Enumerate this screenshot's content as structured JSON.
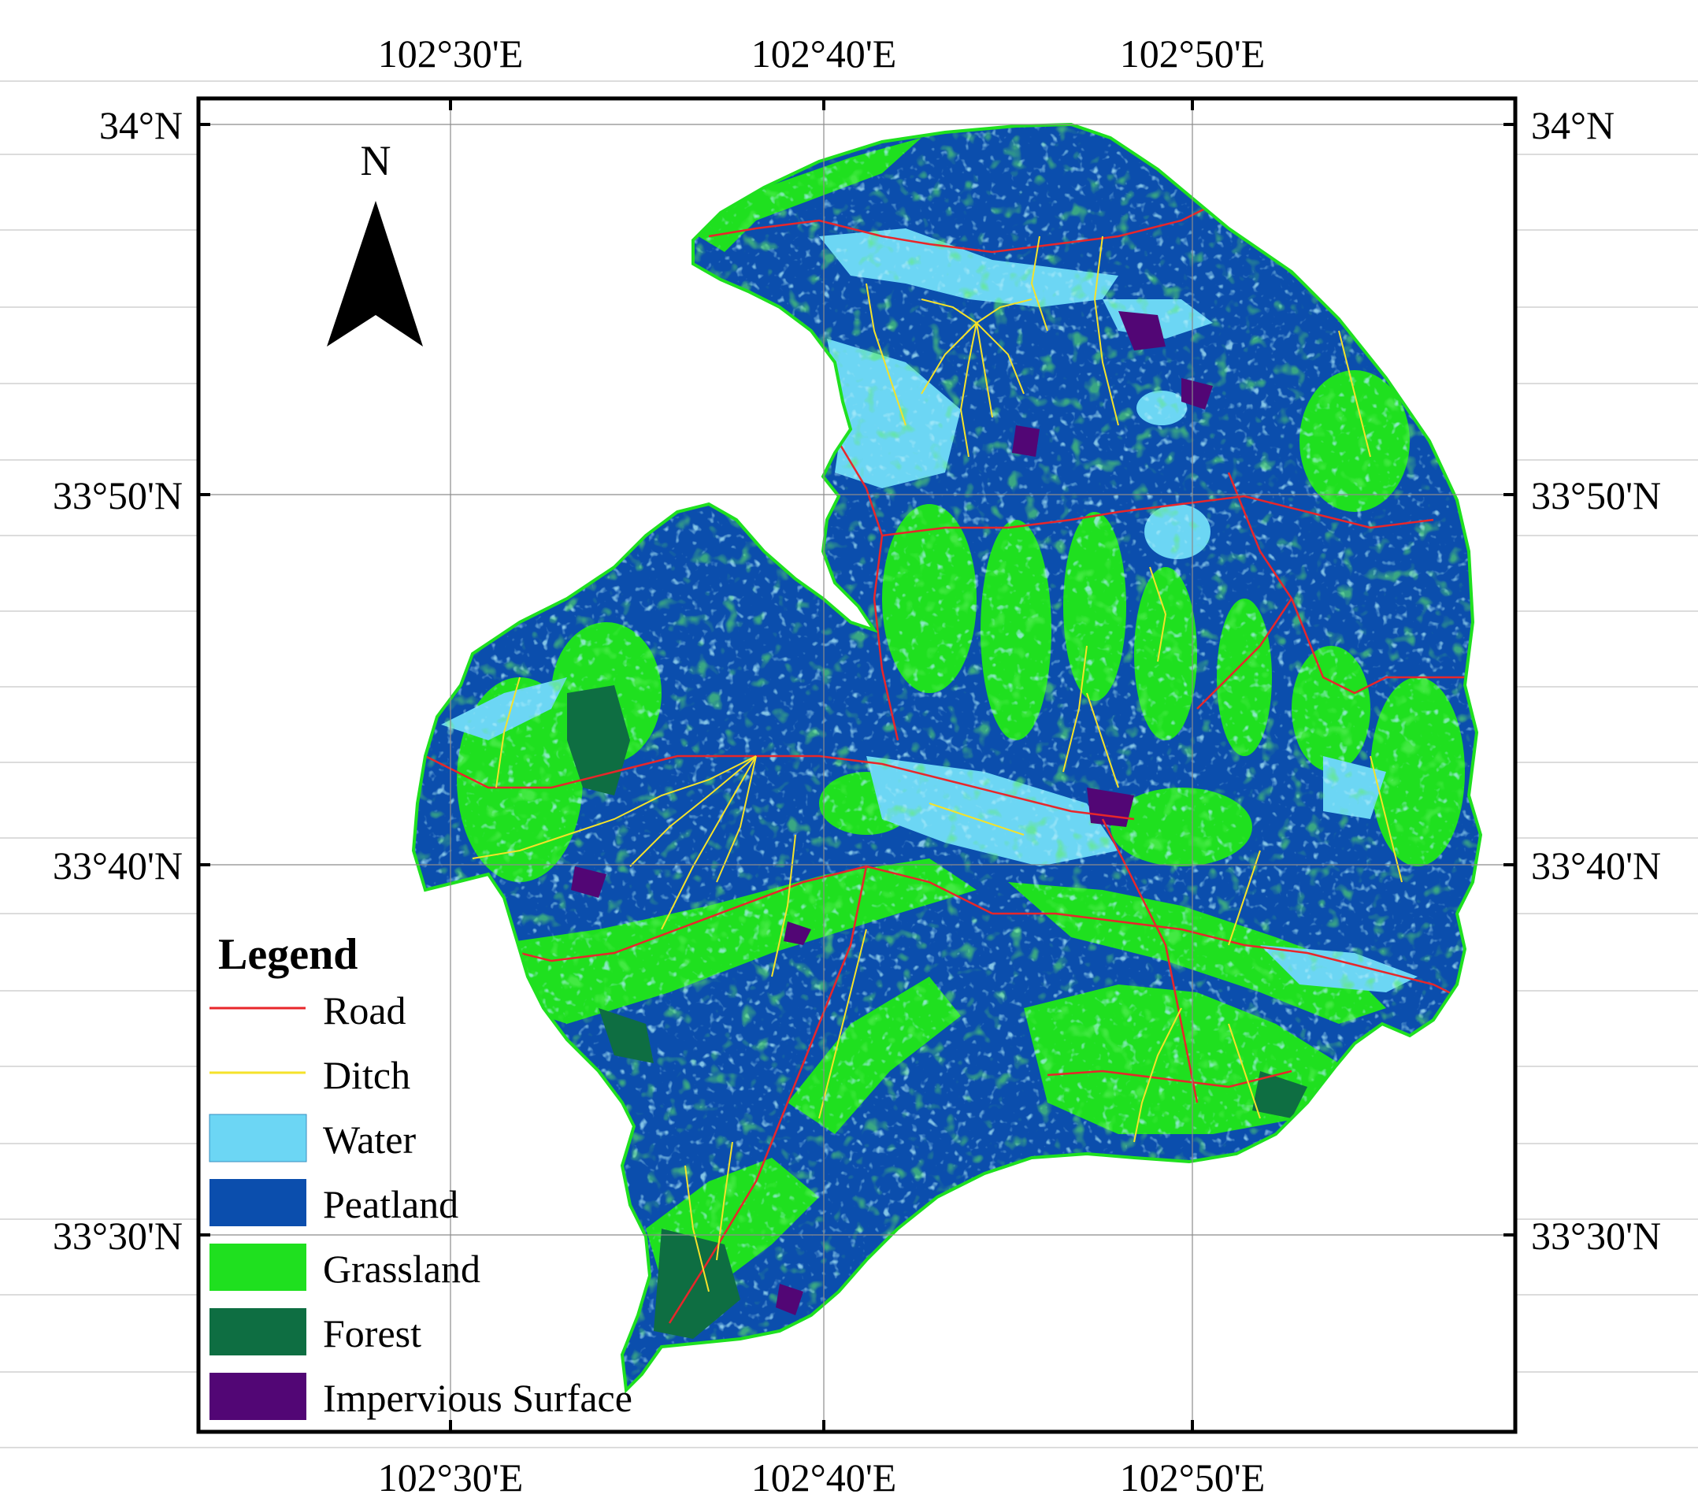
{
  "map": {
    "north_arrow_label": "N",
    "top_axis": [
      "102°30'E",
      "102°40'E",
      "102°50'E"
    ],
    "bottom_axis": [
      "102°30'E",
      "102°40'E",
      "102°50'E"
    ],
    "left_axis": [
      "34°N",
      "33°50'N",
      "33°40'N",
      "33°30'N"
    ],
    "right_axis": [
      "34°N",
      "33°50'N",
      "33°40'N",
      "33°30'N"
    ]
  },
  "legend": {
    "title": "Legend",
    "items": [
      {
        "label": "Road",
        "kind": "line",
        "color": "#e8262a"
      },
      {
        "label": "Ditch",
        "kind": "line",
        "color": "#f5e22a"
      },
      {
        "label": "Water",
        "kind": "patch",
        "color": "#6cd6f4"
      },
      {
        "label": "Peatland",
        "kind": "patch",
        "color": "#0b4ead"
      },
      {
        "label": "Grassland",
        "kind": "patch",
        "color": "#1fe01f"
      },
      {
        "label": "Forest",
        "kind": "patch",
        "color": "#0e6e42"
      },
      {
        "label": "Impervious Surface",
        "kind": "patch",
        "color": "#520675"
      }
    ]
  }
}
